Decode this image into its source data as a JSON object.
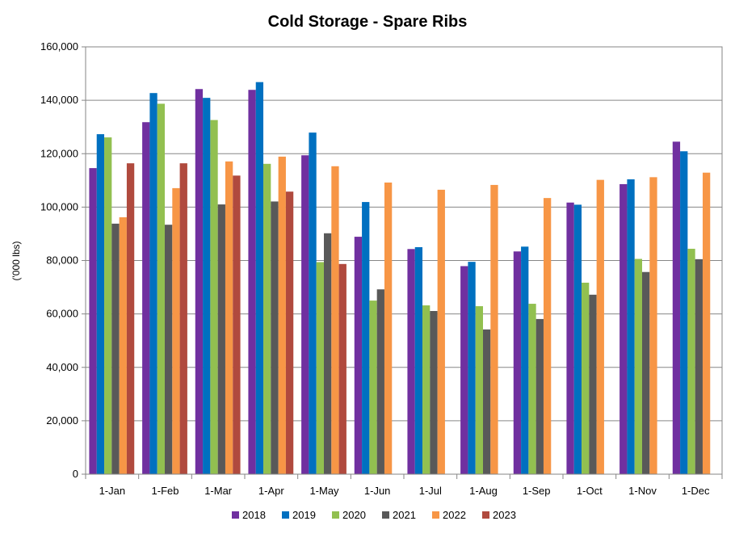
{
  "chart_data": {
    "type": "bar",
    "title": "Cold Storage - Spare Ribs",
    "xlabel": "",
    "ylabel": "('000 lbs)",
    "ylim": [
      0,
      160000
    ],
    "yticks": [
      0,
      20000,
      40000,
      60000,
      80000,
      100000,
      120000,
      140000,
      160000
    ],
    "ytick_labels": [
      "0",
      "20,000",
      "40,000",
      "60,000",
      "80,000",
      "100,000",
      "120,000",
      "140,000",
      "160,000"
    ],
    "grid": true,
    "legend_position": "bottom",
    "categories": [
      "1-Jan",
      "1-Feb",
      "1-Mar",
      "1-Apr",
      "1-May",
      "1-Jun",
      "1-Jul",
      "1-Aug",
      "1-Sep",
      "1-Oct",
      "1-Nov",
      "1-Dec"
    ],
    "series": [
      {
        "name": "2018",
        "color": "#7030A0",
        "values": [
          114600,
          131800,
          144200,
          143900,
          119400,
          88900,
          84300,
          77900,
          83400,
          101700,
          108600,
          124500
        ]
      },
      {
        "name": "2019",
        "color": "#0070C0",
        "values": [
          127300,
          142700,
          140900,
          146800,
          127900,
          101900,
          85000,
          79500,
          85200,
          100900,
          110400,
          120900
        ]
      },
      {
        "name": "2020",
        "color": "#92C050",
        "values": [
          126100,
          138700,
          132600,
          116200,
          79400,
          65000,
          63200,
          62900,
          63800,
          71700,
          80600,
          84400
        ]
      },
      {
        "name": "2021",
        "color": "#595959",
        "values": [
          93800,
          93400,
          101000,
          102100,
          90200,
          69200,
          61100,
          54200,
          58100,
          67200,
          75700,
          80500
        ]
      },
      {
        "name": "2022",
        "color": "#F79646",
        "values": [
          96200,
          107100,
          117100,
          118900,
          115300,
          109200,
          106500,
          108300,
          103400,
          110200,
          111200,
          112900
        ]
      },
      {
        "name": "2023",
        "color": "#B04A3E",
        "values": [
          116400,
          116400,
          111800,
          105800,
          78700,
          null,
          null,
          null,
          null,
          null,
          null,
          null
        ]
      }
    ]
  }
}
